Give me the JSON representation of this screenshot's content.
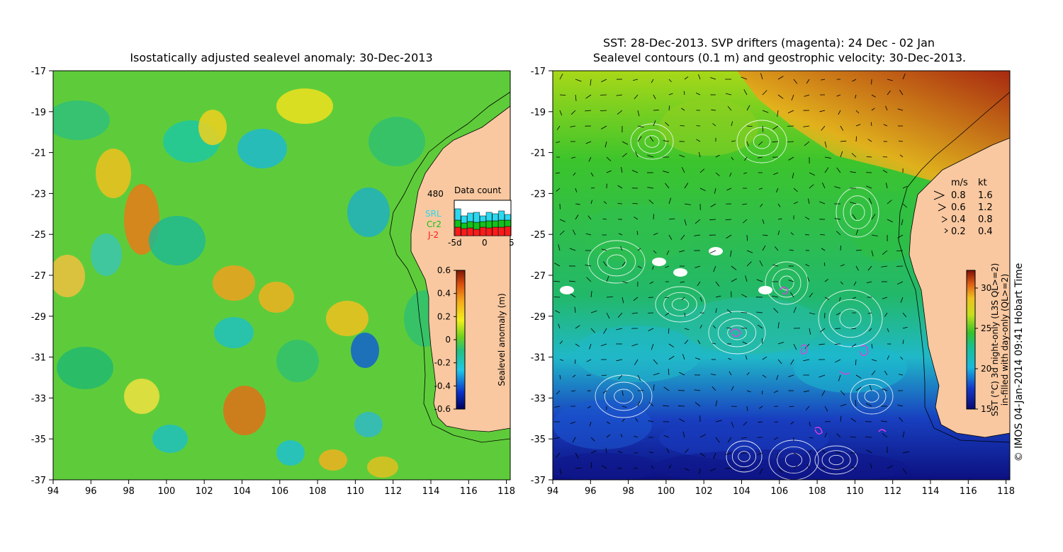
{
  "left_panel": {
    "title": "Isostatically adjusted sealevel anomaly: 30-Dec-2013",
    "colorbar": {
      "label": "Sealevel anomaly (m)",
      "ticks": [
        "0.6",
        "0.4",
        "0.2",
        "0",
        "-0.2",
        "-0.4",
        "-0.6"
      ]
    },
    "inset": {
      "title": "Data count",
      "count": "480",
      "sources": [
        {
          "name": "SRL",
          "color": "#2ad8f0"
        },
        {
          "name": "Cr2",
          "color": "#12c21a"
        },
        {
          "name": "J-2",
          "color": "#ff1a1a"
        }
      ],
      "xticks": [
        "-5d",
        "0",
        "5"
      ]
    }
  },
  "right_panel": {
    "title_line1": "SST: 28-Dec-2013. SVP drifters (magenta): 24 Dec - 02 Jan",
    "title_line2": "Sealevel contours (0.1 m) and geostrophic velocity: 30-Dec-2013.",
    "colorbar": {
      "label_line1": "SST (°C) 3d night-only (L3S QL>=2)",
      "label_line2": "in-filled with day-only (QL>=2)",
      "ticks": [
        "30",
        "25",
        "20",
        "15"
      ]
    },
    "velocity_legend": {
      "units": [
        "m/s",
        "kt"
      ],
      "rows": [
        [
          "0.8",
          "1.6"
        ],
        [
          "0.6",
          "1.2"
        ],
        [
          "0.4",
          "0.8"
        ],
        [
          "0.2",
          "0.4"
        ]
      ]
    },
    "credit": "© IMOS 04-Jan-2014 09:41 Hobart Time"
  },
  "axes": {
    "lon_ticks": [
      "94",
      "96",
      "98",
      "100",
      "102",
      "104",
      "106",
      "108",
      "110",
      "112",
      "114",
      "116",
      "118"
    ],
    "lat_ticks": [
      "-17",
      "-19",
      "-21",
      "-23",
      "-25",
      "-27",
      "-29",
      "-31",
      "-33",
      "-35",
      "-37"
    ]
  },
  "colors": {
    "land": "#f9c8a0",
    "drifter": "#e040e0",
    "contour": "#ffffff"
  }
}
